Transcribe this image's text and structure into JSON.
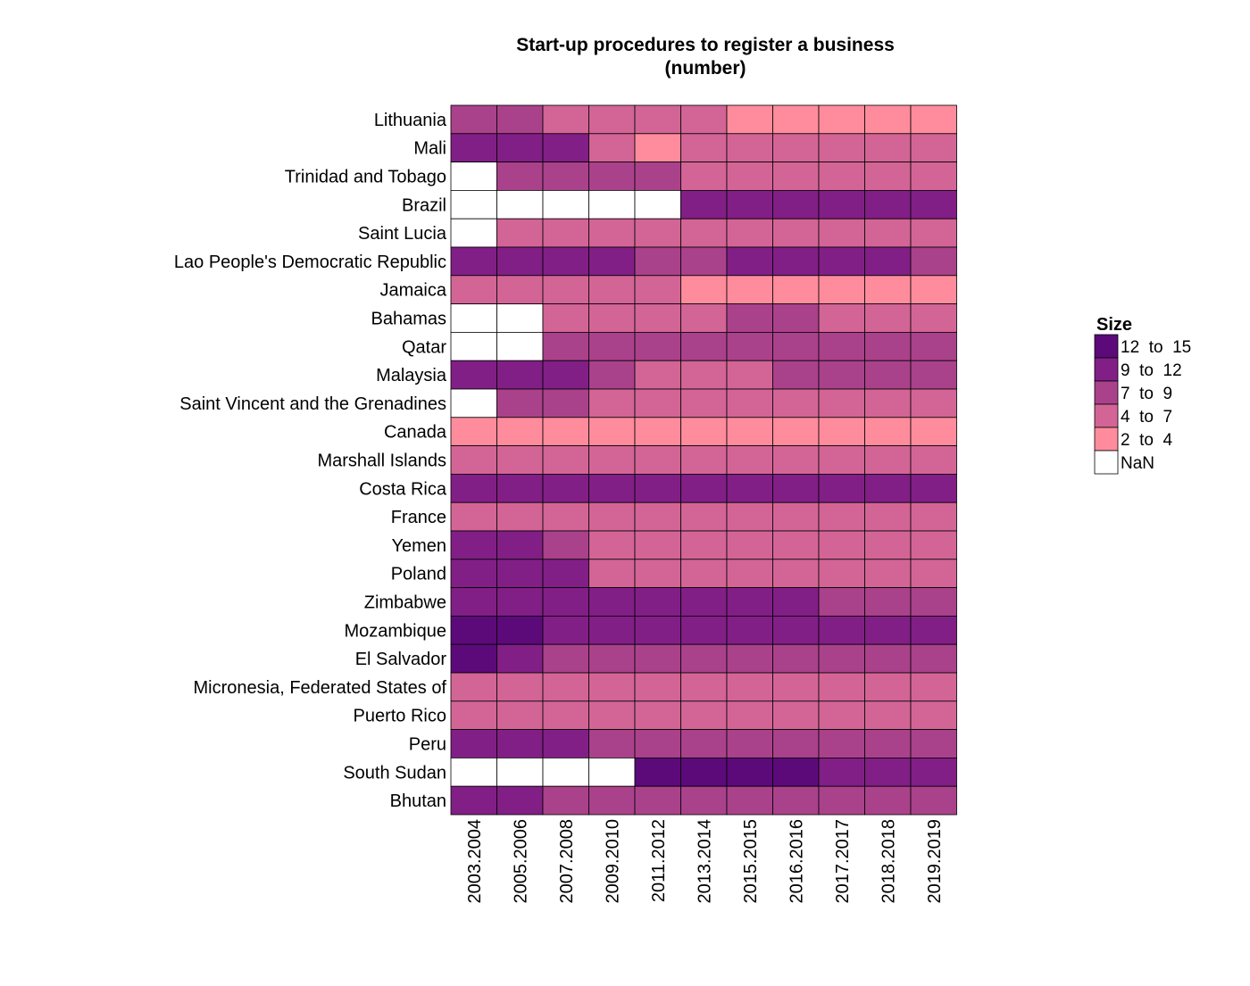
{
  "chart_data": {
    "type": "heatmap",
    "title": "Start-up procedures to register a business",
    "subtitle": "(number)",
    "xlabel": "",
    "ylabel": "",
    "x_categories": [
      "2003.2004",
      "2005.2006",
      "2007.2008",
      "2009.2010",
      "2011.2012",
      "2013.2014",
      "2015.2015",
      "2016.2016",
      "2017.2017",
      "2018.2018",
      "2019.2019"
    ],
    "y_categories": [
      "Lithuania",
      "Mali",
      "Trinidad and Tobago",
      "Brazil",
      "Saint Lucia",
      "Lao People's Democratic Republic",
      "Jamaica",
      "Bahamas",
      "Qatar",
      "Malaysia",
      "Saint Vincent and the Grenadines",
      "Canada",
      "Marshall Islands",
      "Costa Rica",
      "France",
      "Yemen",
      "Poland",
      "Zimbabwe",
      "Mozambique",
      "El Salvador",
      "Micronesia, Federated States of",
      "Puerto Rico",
      "Peru",
      "South Sudan",
      "Bhutan"
    ],
    "values": [
      [
        8,
        8,
        6,
        6,
        6,
        6,
        3,
        3,
        3,
        3,
        3
      ],
      [
        10,
        10,
        10,
        6,
        3,
        6,
        5,
        5,
        5,
        5,
        5
      ],
      [
        null,
        8,
        8,
        8,
        8,
        6,
        6,
        6,
        6,
        6,
        6
      ],
      [
        null,
        null,
        null,
        null,
        null,
        11,
        11,
        11,
        11,
        11,
        11
      ],
      [
        null,
        6,
        6,
        6,
        6,
        6,
        6,
        6,
        6,
        6,
        6
      ],
      [
        11,
        11,
        11,
        11,
        8,
        8,
        11,
        11,
        11,
        11,
        8
      ],
      [
        6,
        6,
        6,
        6,
        6,
        3,
        3,
        3,
        3,
        3,
        3
      ],
      [
        null,
        null,
        6,
        6,
        6,
        6,
        8,
        8,
        6,
        6,
        6
      ],
      [
        null,
        null,
        8,
        8,
        8,
        8,
        8,
        8,
        8,
        8,
        8
      ],
      [
        10,
        10,
        10,
        8,
        6,
        6,
        6,
        8,
        8,
        8,
        8
      ],
      [
        null,
        8,
        8,
        6,
        6,
        6,
        6,
        6,
        6,
        6,
        6
      ],
      [
        2,
        2,
        2,
        2,
        2,
        2,
        2,
        2,
        2,
        2,
        2
      ],
      [
        5,
        5,
        5,
        5,
        5,
        5,
        5,
        5,
        5,
        5,
        5
      ],
      [
        11,
        11,
        11,
        11,
        11,
        9,
        9,
        9,
        9,
        11,
        11
      ],
      [
        6,
        6,
        6,
        6,
        6,
        6,
        6,
        6,
        6,
        6,
        6
      ],
      [
        10,
        10,
        8,
        6,
        6,
        6,
        6,
        6,
        6,
        6,
        6
      ],
      [
        10,
        10,
        10,
        6,
        6,
        6,
        6,
        6,
        6,
        6,
        6
      ],
      [
        10,
        10,
        10,
        10,
        10,
        10,
        10,
        10,
        8,
        8,
        8
      ],
      [
        14,
        14,
        10,
        10,
        10,
        10,
        10,
        10,
        10,
        10,
        10
      ],
      [
        13,
        10,
        8,
        8,
        8,
        8,
        8,
        8,
        8,
        8,
        8
      ],
      [
        6,
        6,
        6,
        6,
        6,
        6,
        6,
        6,
        6,
        6,
        6
      ],
      [
        6,
        6,
        6,
        6,
        6,
        6,
        6,
        6,
        6,
        6,
        6
      ],
      [
        10,
        10,
        10,
        8,
        8,
        8,
        8,
        8,
        8,
        8,
        8
      ],
      [
        null,
        null,
        null,
        null,
        13,
        13,
        13,
        13,
        10,
        10,
        10
      ],
      [
        10,
        10,
        8,
        8,
        8,
        8,
        8,
        8,
        8,
        8,
        8
      ]
    ],
    "legend": {
      "title": "Size",
      "position": "right",
      "items": [
        {
          "label": "12  to  15",
          "color": "#5c0a7a"
        },
        {
          "label": "9  to  12",
          "color": "#811f86"
        },
        {
          "label": "7  to  9",
          "color": "#aa418b"
        },
        {
          "label": "4  to  7",
          "color": "#d26595"
        },
        {
          "label": "2  to  4",
          "color": "#ff8c9c"
        },
        {
          "label": "NaN",
          "color": "#ffffff"
        }
      ]
    },
    "grid": false
  }
}
